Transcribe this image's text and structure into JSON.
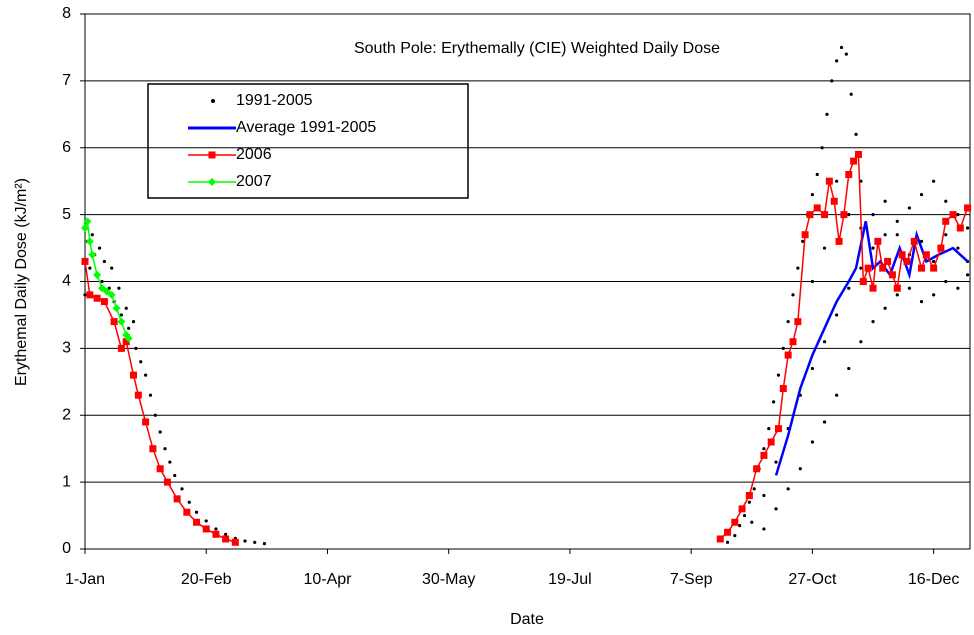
{
  "chart_data": {
    "type": "scatter",
    "title": "South Pole: Erythemally (CIE) Weighted Daily Dose",
    "x_label": "Date",
    "y_label": "Erythemal Daily Dose (kJ/m²)",
    "xlim": [
      0,
      365
    ],
    "ylim": [
      0,
      8
    ],
    "xticks": [
      {
        "value": 0,
        "label": "1-Jan"
      },
      {
        "value": 50,
        "label": "20-Feb"
      },
      {
        "value": 100,
        "label": "10-Apr"
      },
      {
        "value": 150,
        "label": "30-May"
      },
      {
        "value": 200,
        "label": "19-Jul"
      },
      {
        "value": 250,
        "label": "7-Sep"
      },
      {
        "value": 300,
        "label": "27-Oct"
      },
      {
        "value": 350,
        "label": "16-Dec"
      }
    ],
    "yticks": [
      0,
      1,
      2,
      3,
      4,
      5,
      6,
      7,
      8
    ],
    "grid": true,
    "series": [
      {
        "name": "1991-2005",
        "color": "#000000",
        "mode": "markers",
        "x": [
          0,
          0,
          1,
          2,
          3,
          4,
          5,
          6,
          7,
          8,
          10,
          11,
          12,
          14,
          15,
          17,
          18,
          20,
          21,
          23,
          25,
          27,
          29,
          31,
          33,
          35,
          37,
          40,
          43,
          46,
          50,
          54,
          58,
          62,
          66,
          70,
          74,
          265,
          268,
          270,
          272,
          274,
          276,
          278,
          280,
          282,
          284,
          286,
          288,
          290,
          292,
          294,
          296,
          298,
          300,
          302,
          304,
          306,
          308,
          310,
          312,
          314,
          316,
          318,
          320,
          275,
          280,
          285,
          290,
          295,
          300,
          305,
          310,
          315,
          320,
          325,
          330,
          335,
          340,
          345,
          350,
          355,
          360,
          364,
          280,
          285,
          290,
          295,
          300,
          305,
          310,
          315,
          320,
          325,
          330,
          335,
          340,
          345,
          350,
          355,
          360,
          364,
          300,
          305,
          310,
          315,
          320,
          325,
          330,
          335,
          340,
          345,
          350,
          355,
          360,
          364
        ],
        "values": [
          4.3,
          3.8,
          4.6,
          4.2,
          4.7,
          4.4,
          4.1,
          4.5,
          4.0,
          4.3,
          3.9,
          4.2,
          3.7,
          3.9,
          3.5,
          3.6,
          3.3,
          3.4,
          3.0,
          2.8,
          2.6,
          2.3,
          2.0,
          1.75,
          1.5,
          1.3,
          1.1,
          0.9,
          0.7,
          0.55,
          0.42,
          0.3,
          0.22,
          0.16,
          0.12,
          0.1,
          0.08,
          0.1,
          0.2,
          0.35,
          0.5,
          0.7,
          0.9,
          1.2,
          1.5,
          1.8,
          2.2,
          2.6,
          3.0,
          3.4,
          3.8,
          4.2,
          4.6,
          5.0,
          5.3,
          5.6,
          6.0,
          6.5,
          7.0,
          7.3,
          7.5,
          7.4,
          6.8,
          6.2,
          5.5,
          0.4,
          0.8,
          1.3,
          1.8,
          2.3,
          2.7,
          3.1,
          3.5,
          3.9,
          4.2,
          4.5,
          4.7,
          4.9,
          5.1,
          5.3,
          5.5,
          5.2,
          5.0,
          4.8,
          0.3,
          0.6,
          0.9,
          1.2,
          1.6,
          1.9,
          2.3,
          2.7,
          3.1,
          3.4,
          3.6,
          3.8,
          3.9,
          3.7,
          3.8,
          4.0,
          3.9,
          4.1,
          4.0,
          4.5,
          5.5,
          5.0,
          4.8,
          5.0,
          5.2,
          4.7,
          4.4,
          4.6,
          4.3,
          4.7,
          4.5,
          4.3
        ]
      },
      {
        "name": "Average 1991-2005",
        "color": "#0000ff",
        "mode": "line",
        "x": [
          285,
          290,
          295,
          300,
          305,
          310,
          315,
          318,
          322,
          325,
          328,
          332,
          336,
          340,
          343,
          347,
          352,
          358,
          364
        ],
        "values": [
          1.1,
          1.7,
          2.4,
          2.9,
          3.3,
          3.7,
          4.0,
          4.2,
          4.9,
          4.2,
          4.3,
          4.1,
          4.5,
          4.1,
          4.7,
          4.3,
          4.4,
          4.5,
          4.3
        ]
      },
      {
        "name": "2006",
        "color": "#ff0000",
        "mode": "line-square",
        "x": [
          0,
          2,
          5,
          8,
          12,
          15,
          17,
          20,
          22,
          25,
          28,
          31,
          34,
          38,
          42,
          46,
          50,
          54,
          58,
          62,
          150,
          262,
          265,
          268,
          271,
          274,
          277,
          280,
          283,
          286,
          288,
          290,
          292,
          294,
          297,
          299,
          302,
          305,
          307,
          309,
          311,
          313,
          315,
          317,
          319,
          321,
          323,
          325,
          327,
          329,
          331,
          333,
          335,
          337,
          339,
          342,
          345,
          347,
          350,
          353,
          355,
          358,
          361,
          364
        ],
        "values": [
          4.3,
          3.8,
          3.75,
          3.7,
          3.4,
          3.0,
          3.1,
          2.6,
          2.3,
          1.9,
          1.5,
          1.2,
          1.0,
          0.75,
          0.55,
          0.4,
          0.3,
          0.22,
          0.15,
          0.1,
          null,
          0.15,
          0.25,
          0.4,
          0.6,
          0.8,
          1.2,
          1.4,
          1.6,
          1.8,
          2.4,
          2.9,
          3.1,
          3.4,
          4.7,
          5.0,
          5.1,
          5.0,
          5.5,
          5.2,
          4.6,
          5.0,
          5.6,
          5.8,
          5.9,
          4.0,
          4.2,
          3.9,
          4.6,
          4.2,
          4.3,
          4.1,
          3.9,
          4.4,
          4.3,
          4.6,
          4.2,
          4.4,
          4.2,
          4.5,
          4.9,
          5.0,
          4.8,
          5.1
        ]
      },
      {
        "name": "2007",
        "color": "#00ff00",
        "mode": "line-diamond",
        "x": [
          0,
          1,
          2,
          3,
          5,
          7,
          9,
          11,
          13,
          15,
          17,
          18
        ],
        "values": [
          4.8,
          4.9,
          4.6,
          4.4,
          4.1,
          3.9,
          3.85,
          3.8,
          3.6,
          3.4,
          3.2,
          3.15
        ]
      }
    ]
  }
}
